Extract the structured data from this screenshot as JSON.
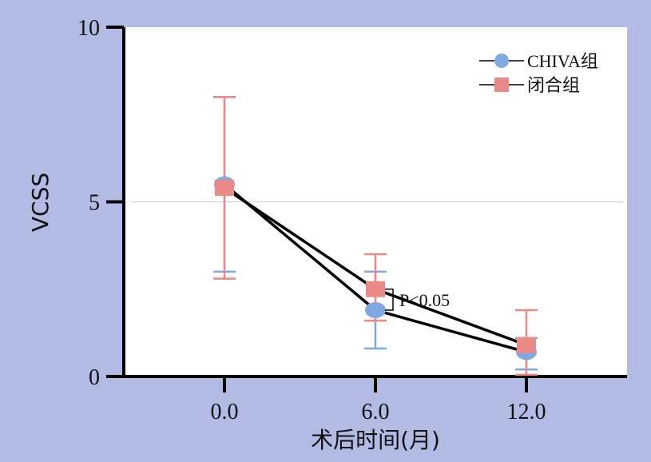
{
  "chart_data": {
    "type": "line",
    "xlabel": "术后时间(月)",
    "ylabel": "VCSS",
    "x": [
      0,
      6,
      12
    ],
    "x_tick_labels": [
      "0.0",
      "6.0",
      "12.0"
    ],
    "xlim": [
      -4,
      16
    ],
    "ylim": [
      0,
      10
    ],
    "y_ticks": [
      0,
      5,
      10
    ],
    "y_tick_labels": [
      "0",
      "5",
      "10"
    ],
    "gridline_y": 5,
    "legend_position": "top-right",
    "series": [
      {
        "name": "CHIVA组",
        "marker": "circle",
        "color": "#7fa9e0",
        "values": [
          5.5,
          1.9,
          0.7
        ],
        "err_low": [
          3.0,
          0.8,
          0.2
        ],
        "err_high": [
          8.0,
          3.0,
          1.1
        ]
      },
      {
        "name": "闭合组",
        "marker": "square",
        "color": "#e98a86",
        "values": [
          5.4,
          2.5,
          0.9
        ],
        "err_low": [
          2.8,
          1.6,
          0.05
        ],
        "err_high": [
          8.0,
          3.5,
          1.9
        ]
      }
    ],
    "annotation": {
      "label": "P<0.05",
      "x": 6,
      "y_from": 1.9,
      "y_to": 2.5
    }
  },
  "colors": {
    "background": "#b1bbe4",
    "plot_area": "#ffffff",
    "line": "#000000",
    "gridline": "#d4d4d4"
  }
}
